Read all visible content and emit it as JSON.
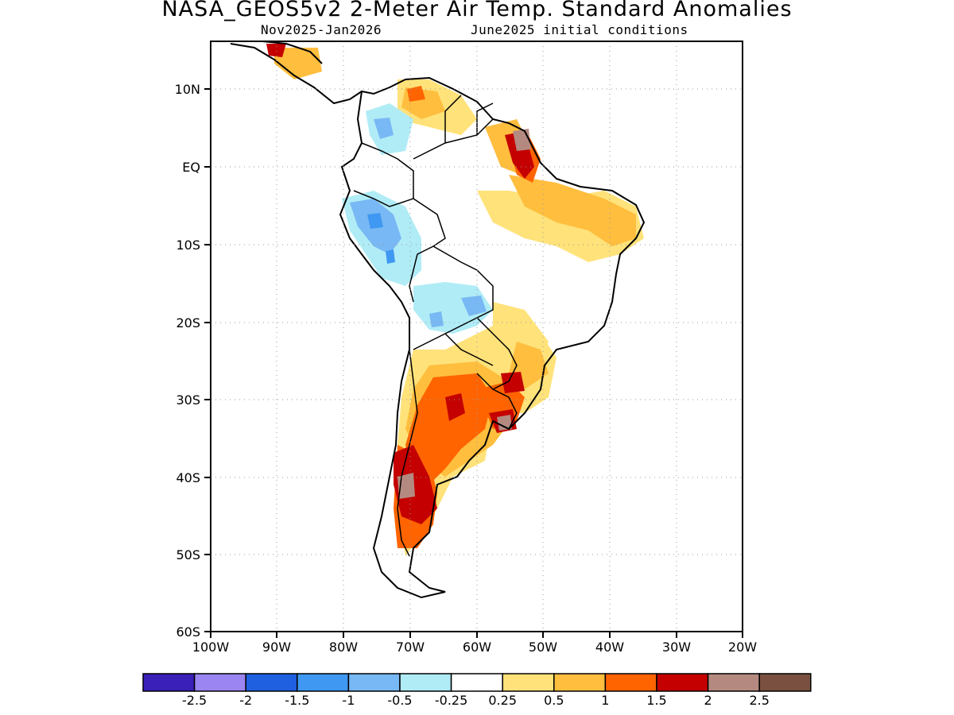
{
  "header": {
    "title": "NASA_GEOS5v2 2-Meter Air Temp. Standard Anomalies",
    "period": "Nov2025-Jan2026",
    "init": "June2025 initial conditions"
  },
  "axes": {
    "lat_labels": [
      "10N",
      "EQ",
      "10S",
      "20S",
      "30S",
      "40S",
      "50S",
      "60S"
    ],
    "lon_labels": [
      "100W",
      "90W",
      "80W",
      "70W",
      "60W",
      "50W",
      "40W",
      "30W",
      "20W"
    ]
  },
  "colorbar": {
    "colors": [
      "#3a1fb8",
      "#9a85f2",
      "#1f60e0",
      "#3f98f2",
      "#78b8f4",
      "#b0ecf6",
      "#ffffff",
      "#ffe27a",
      "#ffbe3e",
      "#ff6400",
      "#c40000",
      "#b48a80",
      "#7a5040"
    ],
    "labels": [
      "-2.5",
      "-2",
      "-1.5",
      "-1",
      "-0.5",
      "-0.25",
      "0.25",
      "0.5",
      "1",
      "1.5",
      "2",
      "2.5"
    ]
  },
  "colors": {
    "coast": "#000000",
    "grid": "#9a9a9a"
  }
}
